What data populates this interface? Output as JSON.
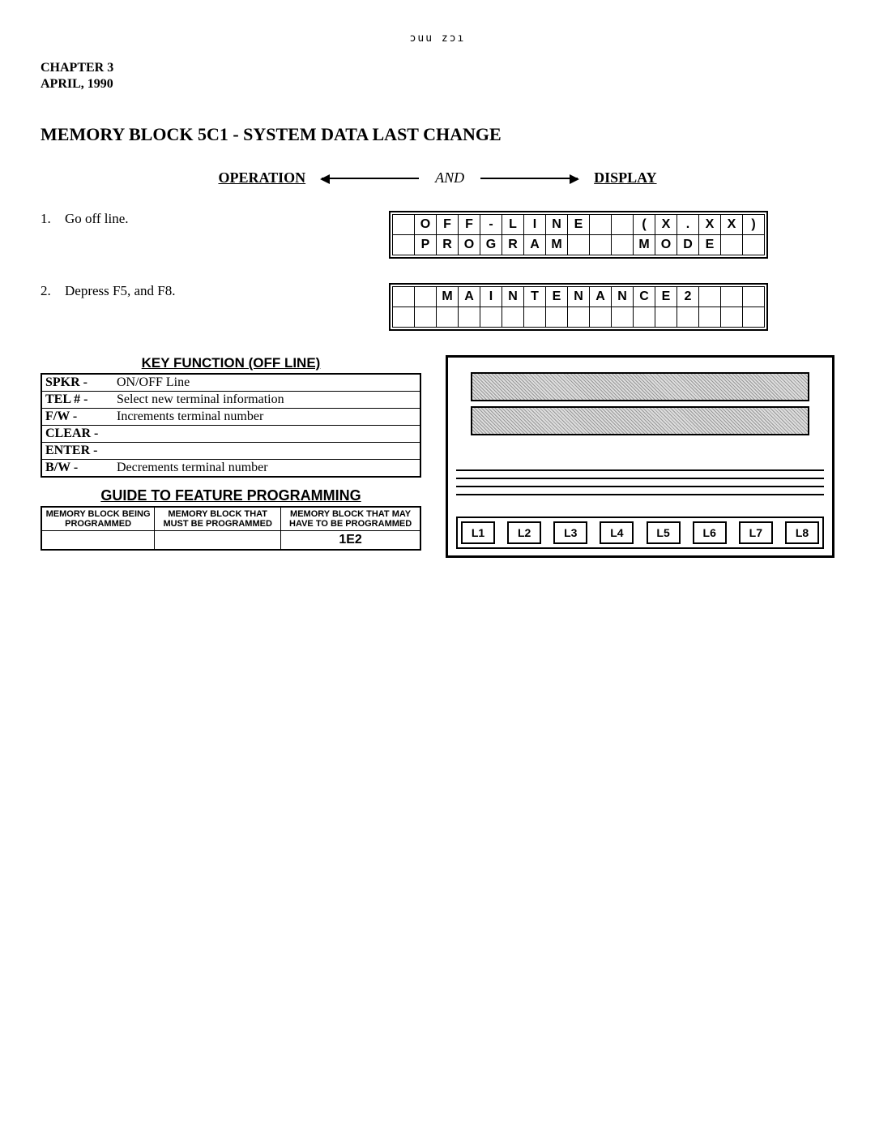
{
  "top_code": "ɔuu  zɔı",
  "chapter": "CHAPTER 3",
  "date": "APRIL, 1990",
  "main_title": "MEMORY BLOCK 5C1 - SYSTEM DATA LAST CHANGE",
  "operation_label": "OPERATION",
  "and_label": "AND",
  "display_label": "DISPLAY",
  "steps": [
    {
      "num": "1.",
      "text": "Go off line.",
      "display_rows": [
        [
          "",
          "O",
          "F",
          "F",
          "-",
          "L",
          "I",
          "N",
          "E",
          "",
          "",
          "(",
          "X",
          ".",
          "X",
          "X",
          ")"
        ],
        [
          "",
          "P",
          "R",
          "O",
          "G",
          "R",
          "A",
          "M",
          "",
          "",
          "",
          "M",
          "O",
          "D",
          "E",
          "",
          ""
        ]
      ]
    },
    {
      "num": "2.",
      "text": "Depress F5, and F8.",
      "display_rows": [
        [
          "",
          "",
          "M",
          "A",
          "I",
          "N",
          "T",
          "E",
          "N",
          "A",
          "N",
          "C",
          "E",
          "2",
          "",
          "",
          ""
        ],
        [
          "",
          "",
          "",
          "",
          "",
          "",
          "",
          "",
          "",
          "",
          "",
          "",
          "",
          "",
          "",
          "",
          ""
        ]
      ]
    }
  ],
  "key_function": {
    "title": "KEY FUNCTION (OFF LINE)",
    "rows": [
      {
        "key": "SPKR -",
        "desc": "ON/OFF Line"
      },
      {
        "key": "TEL # -",
        "desc": "Select new terminal information"
      },
      {
        "key": "F/W  -",
        "desc": "Increments terminal number"
      },
      {
        "key": "CLEAR -",
        "desc": ""
      },
      {
        "key": "ENTER -",
        "desc": ""
      },
      {
        "key": "B/W  -",
        "desc": "Decrements terminal number"
      }
    ]
  },
  "guide": {
    "title": "GUIDE TO FEATURE PROGRAMMING",
    "headers": [
      "MEMORY BLOCK BEING PROGRAMMED",
      "MEMORY BLOCK THAT MUST BE PROGRAMMED",
      "MEMORY BLOCK THAT MAY HAVE TO BE PROGRAMMED"
    ],
    "row": [
      "",
      "",
      "1E2"
    ]
  },
  "l_buttons": [
    "L1",
    "L2",
    "L3",
    "L4",
    "L5",
    "L6",
    "L7",
    "L8"
  ]
}
